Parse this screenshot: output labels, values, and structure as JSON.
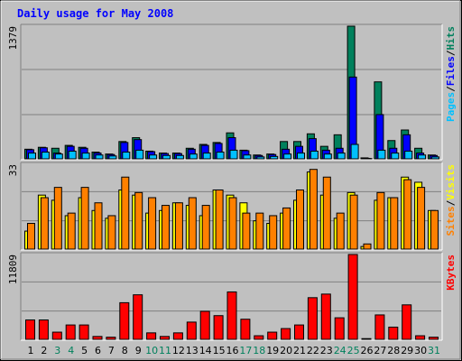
{
  "chart_data": [
    {
      "type": "bar",
      "title": "Daily usage for May 2008",
      "ylim": [
        0,
        1379
      ],
      "yticks": [
        1379
      ],
      "grid_divisions": 3,
      "legend_separator": "/",
      "series": [
        {
          "name": "Hits",
          "color": "#00805c",
          "values": [
            100,
            120,
            110,
            140,
            120,
            70,
            50,
            180,
            220,
            80,
            60,
            60,
            110,
            150,
            170,
            270,
            90,
            40,
            50,
            180,
            180,
            260,
            130,
            250,
            1379,
            10,
            800,
            190,
            300,
            110,
            40
          ]
        },
        {
          "name": "Files",
          "color": "#0000ff",
          "values": [
            95,
            115,
            60,
            130,
            110,
            60,
            45,
            170,
            200,
            75,
            55,
            55,
            100,
            140,
            160,
            220,
            85,
            35,
            45,
            100,
            130,
            210,
            90,
            110,
            850,
            5,
            460,
            110,
            250,
            60,
            35
          ]
        },
        {
          "name": "Pages",
          "color": "#00c0ff",
          "values": [
            60,
            70,
            50,
            80,
            60,
            40,
            30,
            70,
            90,
            40,
            35,
            35,
            50,
            60,
            70,
            90,
            40,
            20,
            25,
            50,
            60,
            80,
            50,
            60,
            150,
            3,
            90,
            60,
            80,
            40,
            20
          ]
        }
      ]
    },
    {
      "type": "bar",
      "ylim": [
        0,
        33
      ],
      "yticks": [
        33
      ],
      "grid_divisions": 3,
      "legend_separator": "/",
      "series": [
        {
          "name": "Visits",
          "color": "#ffff00",
          "values": [
            7,
            21,
            19,
            13,
            20,
            15,
            12,
            23,
            21,
            14,
            15,
            18,
            17,
            13,
            23,
            21,
            18,
            11,
            10,
            14,
            19,
            30,
            21,
            12,
            22,
            1,
            19,
            20,
            28,
            26,
            15
          ]
        },
        {
          "name": "Sites",
          "color": "#ff8000",
          "values": [
            10,
            20,
            24,
            14,
            24,
            18,
            13,
            28,
            22,
            20,
            17,
            18,
            20,
            17,
            23,
            20,
            14,
            14,
            13,
            16,
            23,
            31,
            28,
            14,
            21,
            2,
            22,
            20,
            27,
            24,
            15
          ]
        }
      ]
    },
    {
      "type": "bar",
      "ylim": [
        0,
        11809
      ],
      "yticks": [
        11809
      ],
      "grid_divisions": 3,
      "categories": [
        "1",
        "2",
        "3",
        "4",
        "5",
        "6",
        "7",
        "8",
        "9",
        "10",
        "11",
        "12",
        "13",
        "14",
        "15",
        "16",
        "17",
        "18",
        "19",
        "20",
        "21",
        "22",
        "23",
        "24",
        "25",
        "26",
        "27",
        "28",
        "29",
        "30",
        "31"
      ],
      "category_colors": [
        "#000000",
        "#000000",
        "#00805c",
        "#00805c",
        "#000000",
        "#000000",
        "#000000",
        "#000000",
        "#000000",
        "#00805c",
        "#00805c",
        "#000000",
        "#000000",
        "#000000",
        "#000000",
        "#000000",
        "#00805c",
        "#00805c",
        "#000000",
        "#000000",
        "#000000",
        "#000000",
        "#000000",
        "#00805c",
        "#00805c",
        "#000000",
        "#000000",
        "#000000",
        "#000000",
        "#000000",
        "#00805c"
      ],
      "series": [
        {
          "name": "KBytes",
          "color": "#ff0000",
          "values": [
            2700,
            2700,
            1000,
            2000,
            2000,
            400,
            300,
            5100,
            6200,
            900,
            400,
            900,
            2400,
            3900,
            3300,
            6600,
            2800,
            500,
            1000,
            1500,
            2000,
            5800,
            6300,
            3000,
            11809,
            100,
            3400,
            1700,
            4800,
            500,
            300
          ]
        }
      ]
    }
  ]
}
